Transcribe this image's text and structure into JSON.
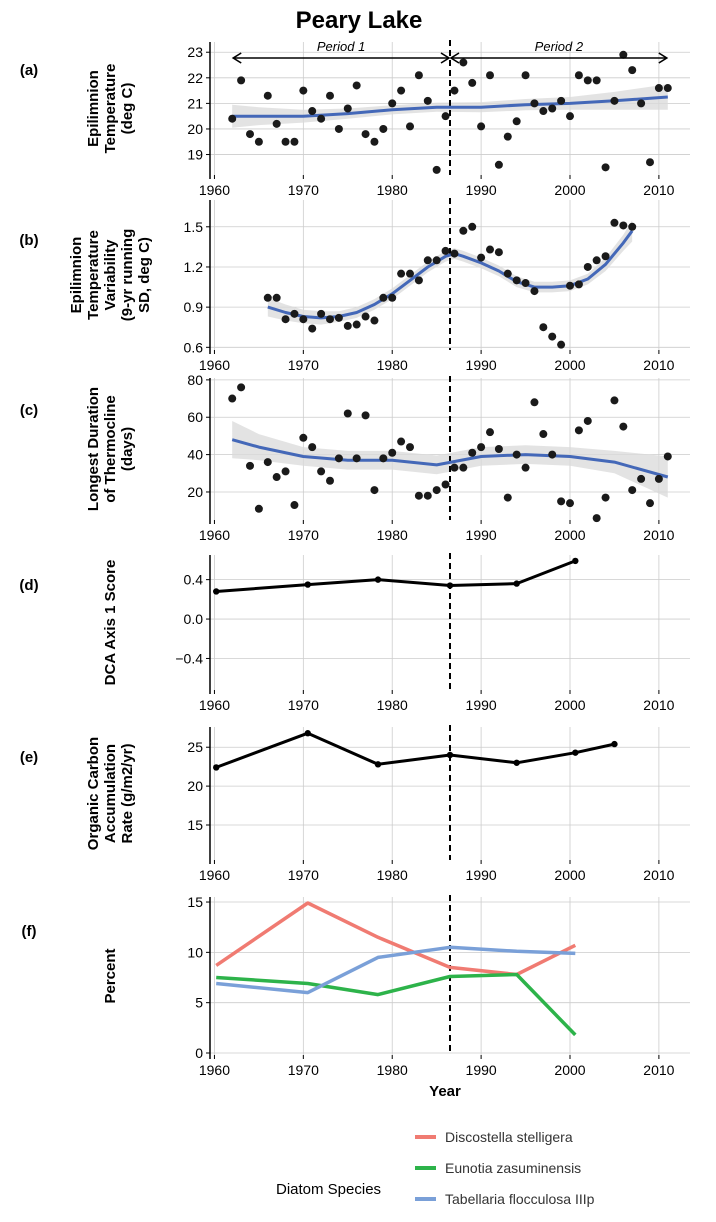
{
  "title": "Peary Lake",
  "vline_year": 1986.5,
  "periods": [
    {
      "label": "Period 1",
      "from": 1962,
      "to": 1986.5
    },
    {
      "label": "Period 2",
      "from": 1986.5,
      "to": 2011
    }
  ],
  "colors": {
    "point": "#1a1a1a",
    "smooth": "#4468b8",
    "ribbon": "#d9d9d9",
    "line": "#000000",
    "grid": "#cccccc",
    "discostella": "#f07b72",
    "eunotia": "#2db34a",
    "tabellaria": "#7aa0d8"
  },
  "chart_data": [
    {
      "id": "a",
      "panel_label": "(a)",
      "type": "scatter",
      "ylabel": [
        "Epilimnion",
        "Temperature",
        "(deg C)"
      ],
      "xlim": [
        1959.5,
        2013.5
      ],
      "xticks": [
        1960,
        1970,
        1980,
        1990,
        2000,
        2010
      ],
      "ylim": [
        18.2,
        23.4
      ],
      "yticks": [
        19,
        20,
        21,
        22,
        23
      ],
      "points": [
        [
          1962,
          20.4
        ],
        [
          1963,
          21.9
        ],
        [
          1964,
          19.8
        ],
        [
          1965,
          19.5
        ],
        [
          1966,
          21.3
        ],
        [
          1967,
          20.2
        ],
        [
          1968,
          19.5
        ],
        [
          1969,
          19.5
        ],
        [
          1970,
          21.5
        ],
        [
          1971,
          20.7
        ],
        [
          1972,
          20.4
        ],
        [
          1973,
          21.3
        ],
        [
          1974,
          20.0
        ],
        [
          1975,
          20.8
        ],
        [
          1976,
          21.7
        ],
        [
          1977,
          19.8
        ],
        [
          1978,
          19.5
        ],
        [
          1979,
          20.0
        ],
        [
          1980,
          21.0
        ],
        [
          1981,
          21.5
        ],
        [
          1982,
          20.1
        ],
        [
          1983,
          22.1
        ],
        [
          1984,
          21.1
        ],
        [
          1985,
          18.4
        ],
        [
          1986,
          20.5
        ],
        [
          1987,
          21.5
        ],
        [
          1988,
          22.6
        ],
        [
          1989,
          21.8
        ],
        [
          1990,
          20.1
        ],
        [
          1991,
          22.1
        ],
        [
          1992,
          18.6
        ],
        [
          1993,
          19.7
        ],
        [
          1994,
          20.3
        ],
        [
          1995,
          22.1
        ],
        [
          1996,
          21.0
        ],
        [
          1997,
          20.7
        ],
        [
          1998,
          20.8
        ],
        [
          1999,
          21.1
        ],
        [
          2000,
          20.5
        ],
        [
          2001,
          22.1
        ],
        [
          2002,
          21.9
        ],
        [
          2003,
          21.9
        ],
        [
          2004,
          18.5
        ],
        [
          2005,
          21.1
        ],
        [
          2006,
          22.9
        ],
        [
          2007,
          22.3
        ],
        [
          2008,
          21.0
        ],
        [
          2009,
          18.7
        ],
        [
          2010,
          21.6
        ],
        [
          2011,
          21.6
        ]
      ],
      "smooth": [
        [
          1962,
          20.5
        ],
        [
          1965,
          20.5
        ],
        [
          1970,
          20.5
        ],
        [
          1975,
          20.6
        ],
        [
          1980,
          20.75
        ],
        [
          1985,
          20.85
        ],
        [
          1990,
          20.85
        ],
        [
          1995,
          20.95
        ],
        [
          2000,
          21.0
        ],
        [
          2005,
          21.1
        ],
        [
          2011,
          21.25
        ]
      ],
      "ribbon_half": [
        0.45,
        0.35,
        0.25,
        0.2,
        0.18,
        0.18,
        0.2,
        0.22,
        0.25,
        0.35,
        0.5
      ]
    },
    {
      "id": "b",
      "panel_label": "(b)",
      "type": "scatter",
      "ylabel": [
        "Epilimnion",
        "Temperature",
        "Variability",
        "(9-yr running",
        "SD, deg C)"
      ],
      "xlim": [
        1959.5,
        2013.5
      ],
      "xticks": [
        1960,
        1970,
        1980,
        1990,
        2000,
        2010
      ],
      "ylim": [
        0.58,
        1.7
      ],
      "yticks": [
        0.6,
        0.9,
        1.2,
        1.5
      ],
      "points": [
        [
          1966,
          0.97
        ],
        [
          1967,
          0.97
        ],
        [
          1968,
          0.81
        ],
        [
          1969,
          0.85
        ],
        [
          1970,
          0.81
        ],
        [
          1971,
          0.74
        ],
        [
          1972,
          0.85
        ],
        [
          1973,
          0.81
        ],
        [
          1974,
          0.82
        ],
        [
          1975,
          0.76
        ],
        [
          1976,
          0.77
        ],
        [
          1977,
          0.83
        ],
        [
          1978,
          0.8
        ],
        [
          1979,
          0.97
        ],
        [
          1980,
          0.97
        ],
        [
          1981,
          1.15
        ],
        [
          1982,
          1.15
        ],
        [
          1983,
          1.1
        ],
        [
          1984,
          1.25
        ],
        [
          1985,
          1.25
        ],
        [
          1986,
          1.32
        ],
        [
          1987,
          1.3
        ],
        [
          1988,
          1.47
        ],
        [
          1989,
          1.5
        ],
        [
          1990,
          1.27
        ],
        [
          1991,
          1.33
        ],
        [
          1992,
          1.31
        ],
        [
          1993,
          1.15
        ],
        [
          1994,
          1.1
        ],
        [
          1995,
          1.08
        ],
        [
          1996,
          1.02
        ],
        [
          1997,
          0.75
        ],
        [
          1998,
          0.68
        ],
        [
          1999,
          0.62
        ],
        [
          2000,
          1.06
        ],
        [
          2001,
          1.07
        ],
        [
          2002,
          1.2
        ],
        [
          2003,
          1.25
        ],
        [
          2004,
          1.28
        ],
        [
          2005,
          1.53
        ],
        [
          2006,
          1.51
        ],
        [
          2007,
          1.5
        ]
      ],
      "smooth": [
        [
          1966,
          0.9
        ],
        [
          1968,
          0.86
        ],
        [
          1970,
          0.83
        ],
        [
          1972,
          0.82
        ],
        [
          1974,
          0.83
        ],
        [
          1976,
          0.86
        ],
        [
          1978,
          0.92
        ],
        [
          1980,
          1.0
        ],
        [
          1982,
          1.1
        ],
        [
          1984,
          1.2
        ],
        [
          1986,
          1.28
        ],
        [
          1987,
          1.3
        ],
        [
          1988,
          1.28
        ],
        [
          1990,
          1.23
        ],
        [
          1992,
          1.17
        ],
        [
          1994,
          1.09
        ],
        [
          1996,
          1.05
        ],
        [
          1998,
          1.05
        ],
        [
          2000,
          1.06
        ],
        [
          2002,
          1.11
        ],
        [
          2004,
          1.22
        ],
        [
          2006,
          1.38
        ],
        [
          2007,
          1.47
        ]
      ],
      "ribbon_half": [
        0.07,
        0.06,
        0.05,
        0.05,
        0.04,
        0.04,
        0.04,
        0.04,
        0.04,
        0.04,
        0.04,
        0.04,
        0.04,
        0.04,
        0.04,
        0.04,
        0.04,
        0.04,
        0.04,
        0.04,
        0.05,
        0.06,
        0.08
      ]
    },
    {
      "id": "c",
      "panel_label": "(c)",
      "type": "scatter",
      "ylabel": [
        "Longest Duration",
        "of Thermocline",
        "(days)"
      ],
      "xlim": [
        1959.5,
        2013.5
      ],
      "xticks": [
        1960,
        1970,
        1980,
        1990,
        2000,
        2010
      ],
      "ylim": [
        5,
        81
      ],
      "yticks": [
        20,
        40,
        60,
        80
      ],
      "points": [
        [
          1962,
          70
        ],
        [
          1963,
          76
        ],
        [
          1964,
          34
        ],
        [
          1965,
          11
        ],
        [
          1966,
          36
        ],
        [
          1967,
          28
        ],
        [
          1968,
          31
        ],
        [
          1969,
          13
        ],
        [
          1970,
          49
        ],
        [
          1971,
          44
        ],
        [
          1972,
          31
        ],
        [
          1973,
          26
        ],
        [
          1974,
          38
        ],
        [
          1975,
          62
        ],
        [
          1976,
          38
        ],
        [
          1977,
          61
        ],
        [
          1978,
          21
        ],
        [
          1979,
          38
        ],
        [
          1980,
          41
        ],
        [
          1981,
          47
        ],
        [
          1982,
          44
        ],
        [
          1983,
          18
        ],
        [
          1984,
          18
        ],
        [
          1985,
          21
        ],
        [
          1986,
          24
        ],
        [
          1987,
          33
        ],
        [
          1988,
          33
        ],
        [
          1989,
          41
        ],
        [
          1990,
          44
        ],
        [
          1991,
          52
        ],
        [
          1992,
          43
        ],
        [
          1993,
          17
        ],
        [
          1994,
          40
        ],
        [
          1995,
          33
        ],
        [
          1996,
          68
        ],
        [
          1997,
          51
        ],
        [
          1998,
          40
        ],
        [
          1999,
          15
        ],
        [
          2000,
          14
        ],
        [
          2001,
          53
        ],
        [
          2002,
          58
        ],
        [
          2003,
          6
        ],
        [
          2004,
          17
        ],
        [
          2005,
          69
        ],
        [
          2006,
          55
        ],
        [
          2007,
          21
        ],
        [
          2008,
          27
        ],
        [
          2009,
          14
        ],
        [
          2010,
          27
        ],
        [
          2011,
          39
        ]
      ],
      "smooth": [
        [
          1962,
          48
        ],
        [
          1965,
          44
        ],
        [
          1970,
          39
        ],
        [
          1975,
          37
        ],
        [
          1980,
          37
        ],
        [
          1985,
          34.5
        ],
        [
          1990,
          39
        ],
        [
          1995,
          40
        ],
        [
          2000,
          39
        ],
        [
          2005,
          36
        ],
        [
          2011,
          28
        ]
      ],
      "ribbon_half": [
        10,
        7,
        5,
        5,
        5,
        5,
        5,
        5,
        5,
        6,
        11
      ]
    },
    {
      "id": "d",
      "panel_label": "(d)",
      "type": "line",
      "ylabel": [
        "DCA Axis 1 Score"
      ],
      "xlim": [
        1959.5,
        2013.5
      ],
      "xticks": [
        1960,
        1970,
        1980,
        1990,
        2000,
        2010
      ],
      "ylim": [
        -0.72,
        0.65
      ],
      "yticks": [
        0.4,
        0.0,
        -0.4
      ],
      "ytick_labels": [
        "0.4",
        "0.0",
        "−0.4"
      ],
      "x": [
        1960.2,
        1970.5,
        1978.4,
        1986.5,
        1994.0,
        2000.6
      ],
      "y": [
        0.28,
        0.35,
        0.4,
        0.34,
        0.36,
        0.59
      ]
    },
    {
      "id": "e",
      "panel_label": "(e)",
      "type": "line",
      "ylabel": [
        "Organic Carbon",
        "Accumulation",
        "Rate (g/m2/yr)"
      ],
      "xlim": [
        1959.5,
        2013.5
      ],
      "xticks": [
        1960,
        1970,
        1980,
        1990,
        2000,
        2010
      ],
      "ylim": [
        10.5,
        27.6
      ],
      "yticks": [
        15,
        20,
        25
      ],
      "x": [
        1960.2,
        1970.5,
        1978.4,
        1986.5,
        1994.0,
        2000.6,
        2005.0
      ],
      "y": [
        22.4,
        26.8,
        22.8,
        24.0,
        23.0,
        24.3,
        25.4
      ]
    },
    {
      "id": "f",
      "panel_label": "(f)",
      "type": "line",
      "ylabel": [
        "Percent"
      ],
      "xlabel": "Year",
      "xlim": [
        1959.5,
        2013.5
      ],
      "xticks": [
        1960,
        1970,
        1980,
        1990,
        2000,
        2010
      ],
      "ylim": [
        -0.2,
        15.5
      ],
      "yticks": [
        0,
        5,
        10,
        15
      ],
      "legend_title": "Diatom Species",
      "series": [
        {
          "name": "Discostella stelligera",
          "color_key": "discostella",
          "x": [
            1960.2,
            1970.5,
            1978.4,
            1986.5,
            1994.0,
            2000.6
          ],
          "y": [
            8.7,
            14.9,
            11.5,
            8.5,
            7.8,
            10.7
          ]
        },
        {
          "name": "Eunotia zasuminensis",
          "color_key": "eunotia",
          "x": [
            1960.2,
            1970.5,
            1978.4,
            1986.5,
            1994.0,
            2000.6
          ],
          "y": [
            7.5,
            6.9,
            5.8,
            7.6,
            7.8,
            1.8
          ]
        },
        {
          "name": "Tabellaria flocculosa IIIp",
          "color_key": "tabellaria",
          "x": [
            1960.2,
            1970.5,
            1978.4,
            1986.5,
            1994.0,
            2000.6
          ],
          "y": [
            6.9,
            6.0,
            9.5,
            10.5,
            10.1,
            9.9
          ]
        }
      ]
    }
  ]
}
